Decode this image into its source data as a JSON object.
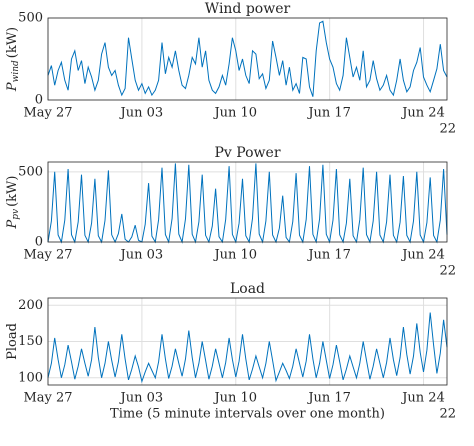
{
  "chart_data": [
    {
      "type": "line",
      "title": "Wind power",
      "ylabel": "P",
      "ylabel_sub": "wind",
      "ylabel_unit": "(kW)",
      "color": "#0072bd",
      "grid": true,
      "xlim": [
        0,
        119
      ],
      "xticks": [
        {
          "value": 0,
          "label": "May 27"
        },
        {
          "value": 28,
          "label": "Jun 03"
        },
        {
          "value": 56,
          "label": "Jun 10"
        },
        {
          "value": 84,
          "label": "Jun 17"
        },
        {
          "value": 112,
          "label": "Jun 24"
        }
      ],
      "year_label": "22",
      "ylim": [
        0,
        500
      ],
      "yticks": [
        0,
        500
      ],
      "values": [
        150,
        210,
        90,
        180,
        230,
        120,
        60,
        250,
        300,
        180,
        240,
        100,
        200,
        140,
        60,
        120,
        280,
        350,
        200,
        150,
        180,
        90,
        30,
        70,
        380,
        250,
        120,
        60,
        100,
        40,
        80,
        30,
        60,
        120,
        350,
        160,
        260,
        200,
        300,
        180,
        90,
        70,
        150,
        260,
        220,
        380,
        200,
        300,
        120,
        60,
        40,
        80,
        150,
        90,
        220,
        380,
        300,
        180,
        250,
        150,
        100,
        300,
        280,
        130,
        160,
        70,
        120,
        360,
        260,
        150,
        240,
        90,
        200,
        60,
        100,
        40,
        260,
        250,
        80,
        20,
        300,
        470,
        480,
        350,
        250,
        200,
        100,
        60,
        150,
        380,
        260,
        140,
        200,
        120,
        300,
        80,
        120,
        240,
        130,
        60,
        90,
        150,
        60,
        30,
        120,
        250,
        120,
        50,
        80,
        180,
        230,
        320,
        140,
        90,
        50,
        120,
        190,
        340,
        180,
        140
      ]
    },
    {
      "type": "line",
      "title": "Pv Power",
      "ylabel": "P",
      "ylabel_sub": "pv",
      "ylabel_unit": "(kW)",
      "color": "#0072bd",
      "grid": true,
      "xlim": [
        0,
        119
      ],
      "xticks": [
        {
          "value": 0,
          "label": "May 27"
        },
        {
          "value": 28,
          "label": "Jun 03"
        },
        {
          "value": 56,
          "label": "Jun 10"
        },
        {
          "value": 84,
          "label": "Jun 17"
        },
        {
          "value": 112,
          "label": "Jun 24"
        }
      ],
      "year_label": "22",
      "ylim": [
        0,
        570
      ],
      "yticks": [
        0,
        500
      ],
      "values": [
        0,
        150,
        500,
        50,
        0,
        156,
        520,
        52,
        0,
        144,
        480,
        48,
        0,
        135,
        450,
        45,
        0,
        153,
        510,
        51,
        0,
        60,
        200,
        20,
        0,
        36,
        120,
        12,
        0,
        126,
        420,
        42,
        0,
        159,
        530,
        53,
        0,
        168,
        560,
        56,
        0,
        165,
        550,
        55,
        0,
        144,
        480,
        48,
        0,
        114,
        380,
        38,
        0,
        162,
        540,
        54,
        0,
        135,
        450,
        45,
        0,
        168,
        560,
        56,
        0,
        150,
        500,
        50,
        0,
        99,
        330,
        33,
        0,
        147,
        490,
        49,
        0,
        162,
        540,
        54,
        0,
        165,
        550,
        55,
        0,
        156,
        520,
        52,
        0,
        135,
        450,
        45,
        0,
        159,
        530,
        53,
        0,
        150,
        500,
        50,
        0,
        144,
        480,
        48,
        0,
        141,
        470,
        47,
        0,
        150,
        500,
        50,
        0,
        138,
        460,
        46,
        0,
        156,
        520,
        52
      ]
    },
    {
      "type": "line",
      "title": "Load",
      "ylabel": "Pload",
      "color": "#0072bd",
      "grid": true,
      "xlim": [
        0,
        119
      ],
      "xticks": [
        {
          "value": 0,
          "label": "May 27"
        },
        {
          "value": 28,
          "label": "Jun 03"
        },
        {
          "value": 56,
          "label": "Jun 10"
        },
        {
          "value": 84,
          "label": "Jun 17"
        },
        {
          "value": 112,
          "label": "Jun 24"
        }
      ],
      "year_label": "22",
      "xlabel": "Time (5 minute intervals over one month)",
      "ylim": [
        90,
        210
      ],
      "yticks": [
        100,
        150,
        200
      ],
      "values": [
        100,
        120,
        155,
        125,
        100,
        118,
        145,
        122,
        98,
        116,
        140,
        120,
        102,
        125,
        170,
        128,
        100,
        120,
        150,
        124,
        101,
        122,
        160,
        126,
        97,
        112,
        130,
        115,
        95,
        108,
        120,
        110,
        100,
        122,
        160,
        126,
        99,
        116,
        140,
        120,
        102,
        126,
        165,
        128,
        100,
        120,
        150,
        124,
        98,
        116,
        140,
        120,
        100,
        121,
        155,
        125,
        101,
        123,
        160,
        126,
        97,
        112,
        130,
        115,
        100,
        120,
        150,
        124,
        96,
        108,
        120,
        110,
        99,
        116,
        140,
        120,
        101,
        123,
        160,
        126,
        100,
        120,
        150,
        124,
        99,
        118,
        145,
        122,
        97,
        112,
        130,
        115,
        100,
        120,
        150,
        124,
        98,
        116,
        140,
        120,
        100,
        121,
        155,
        125,
        103,
        128,
        170,
        132,
        105,
        130,
        175,
        135,
        108,
        138,
        190,
        145,
        106,
        134,
        180,
        142
      ]
    }
  ]
}
